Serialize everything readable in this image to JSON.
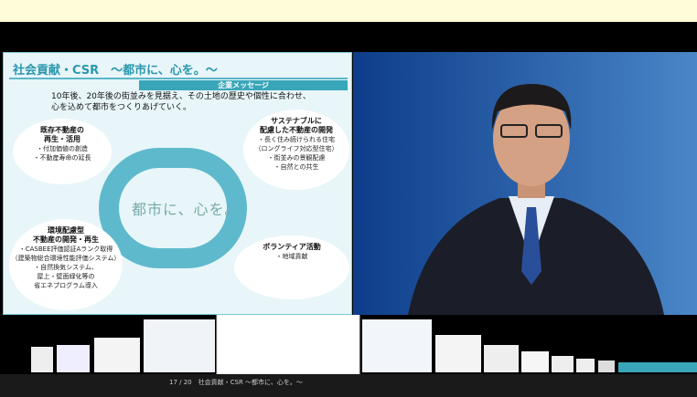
{
  "slide": {
    "title": "社会貢献・CSR　～都市に、心を。～",
    "message_header": "企業メッセージ",
    "message_lines": [
      "10年後、20年後の街並みを見据え、その土地の歴史や個性に合わせ、",
      "心を込めて都市をつくりあげていく。"
    ],
    "center": "都市に、心を。",
    "bubbles": [
      {
        "heading": [
          "既存不動産の",
          "再生・活用"
        ],
        "items": [
          "・付加価値の創造",
          "・不動産寿命の延長"
        ]
      },
      {
        "heading": [
          "サステナブルに",
          "配慮した不動産の開発"
        ],
        "items": [
          "・長く住み続けられる住宅",
          "（ロングライフ対応型住宅）",
          "・街並みの景観配慮",
          "・自然との共生"
        ]
      },
      {
        "heading": [
          "環境配慮型",
          "不動産の開発・再生"
        ],
        "items": [
          "・CASBEE評価認証Aランク取得",
          "（建築物総合環境性能評価システム）",
          "・自然換気システム、",
          "屋上・壁面緑化等の",
          "省エネプログラム導入"
        ]
      },
      {
        "heading": [
          "ボランティア活動"
        ],
        "items": [
          "・地域貢献"
        ]
      }
    ]
  },
  "controls": {
    "position": "17 / 20",
    "caption": "社会貢献・CSR ～都市に、心を。～"
  }
}
